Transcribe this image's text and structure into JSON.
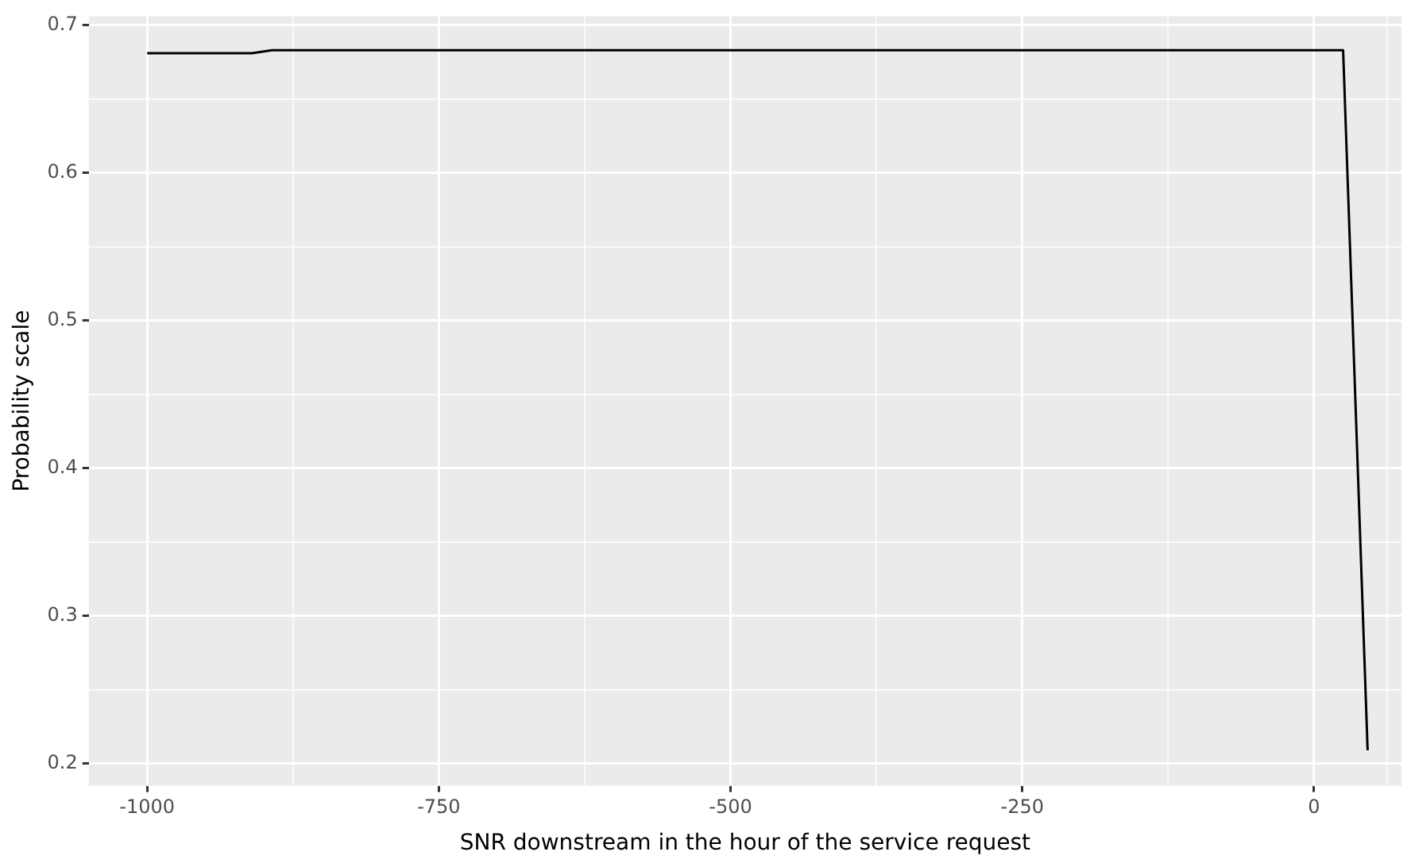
{
  "chart_data": {
    "type": "line",
    "xlabel": "SNR downstream in the hour of the service request",
    "ylabel": "Probability scale",
    "x": [
      -1000,
      -910,
      -893,
      25,
      46
    ],
    "series": [
      {
        "color": "#000000",
        "values": [
          0.681,
          0.681,
          0.683,
          0.683,
          0.209
        ]
      }
    ],
    "xlim": [
      -1050,
      75
    ],
    "xticks": [
      {
        "value": -1000,
        "label": "-1000"
      },
      {
        "value": -875,
        "label": null
      },
      {
        "value": -750,
        "label": "-750"
      },
      {
        "value": -625,
        "label": null
      },
      {
        "value": -500,
        "label": "-500"
      },
      {
        "value": -375,
        "label": null
      },
      {
        "value": -250,
        "label": "-250"
      },
      {
        "value": -125,
        "label": null
      },
      0,
      {
        "value": 62.5,
        "label": null
      }
    ],
    "ylim": [
      0.185,
      0.706
    ],
    "yticks": [
      0.2,
      {
        "value": 0.25,
        "label": null
      },
      0.3,
      {
        "value": 0.35,
        "label": null
      },
      0.4,
      {
        "value": 0.45,
        "label": null
      },
      0.5,
      {
        "value": 0.55,
        "label": null
      },
      0.6,
      {
        "value": 0.65,
        "label": null
      },
      0.7
    ],
    "grid": true,
    "legend": false,
    "marker": "none",
    "line_style": "solid"
  }
}
